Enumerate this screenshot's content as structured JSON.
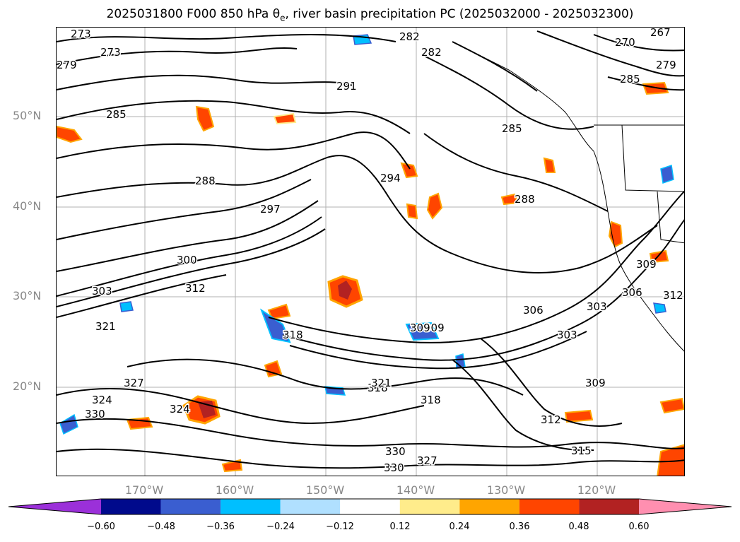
{
  "title": {
    "prefix": "2025031800 F000 850 hPa θ",
    "sub": "e",
    "suffix": ", river basin precipitation PC (2025032000 - 2025032300)"
  },
  "axes": {
    "lat_labels": [
      "50°N",
      "40°N",
      "30°N",
      "20°N"
    ],
    "lon_labels": [
      "170°W",
      "160°W",
      "150°W",
      "140°W",
      "130°W",
      "120°W"
    ]
  },
  "colorbar": {
    "tick_labels": [
      "−0.60",
      "−0.48",
      "−0.36",
      "−0.24",
      "−0.12",
      "0.12",
      "0.24",
      "0.36",
      "0.48",
      "0.60"
    ],
    "colors": [
      "#9b30d9",
      "#000a8c",
      "#3a5ed0",
      "#00bfff",
      "#b0e0ff",
      "#ffffff",
      "#ffec8b",
      "#ffa500",
      "#ff4500",
      "#b22222",
      "#ff8fb0"
    ]
  },
  "contour_labels": [
    {
      "text": "273"
    },
    {
      "text": "273"
    },
    {
      "text": "279"
    },
    {
      "text": "282"
    },
    {
      "text": "282"
    },
    {
      "text": "285"
    },
    {
      "text": "285"
    },
    {
      "text": "285"
    },
    {
      "text": "291"
    },
    {
      "text": "288"
    },
    {
      "text": "288"
    },
    {
      "text": "294"
    },
    {
      "text": "297"
    },
    {
      "text": "270"
    },
    {
      "text": "267"
    },
    {
      "text": "279"
    },
    {
      "text": "300"
    },
    {
      "text": "303"
    },
    {
      "text": "303"
    },
    {
      "text": "306"
    },
    {
      "text": "306"
    },
    {
      "text": "309"
    },
    {
      "text": "309"
    },
    {
      "text": "309"
    },
    {
      "text": "312"
    },
    {
      "text": "312"
    },
    {
      "text": "312"
    },
    {
      "text": "315"
    },
    {
      "text": "318"
    },
    {
      "text": "318"
    },
    {
      "text": "318"
    },
    {
      "text": "321"
    },
    {
      "text": "321"
    },
    {
      "text": "324"
    },
    {
      "text": "324"
    },
    {
      "text": "327"
    },
    {
      "text": "330"
    },
    {
      "text": "330"
    },
    {
      "text": "330"
    },
    {
      "text": "327"
    },
    {
      "text": "309"
    },
    {
      "text": "303"
    }
  ],
  "colors": {
    "contour": "#000000",
    "grid": "#b0b0b0",
    "coast": "#000000"
  }
}
